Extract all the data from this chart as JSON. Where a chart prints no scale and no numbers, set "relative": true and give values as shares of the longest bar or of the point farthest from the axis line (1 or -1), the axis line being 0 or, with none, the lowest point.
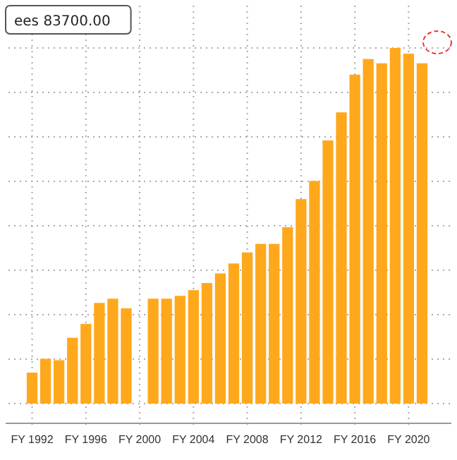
{
  "chart_data": {
    "type": "bar",
    "relative": true,
    "color": "#ffa81c",
    "grid": true,
    "categories": [
      "FY 1992",
      null,
      null,
      null,
      "FY 1996",
      null,
      null,
      null,
      "FY 2000",
      null,
      null,
      null,
      "FY 2004",
      null,
      null,
      null,
      "FY 2008",
      null,
      null,
      null,
      "FY 2012",
      null,
      null,
      null,
      "FY 2016",
      null,
      null,
      null,
      "FY 2020",
      null
    ],
    "values": [
      0.087,
      0.126,
      0.122,
      0.185,
      0.224,
      0.283,
      0.295,
      0.268,
      null,
      0.295,
      0.295,
      0.303,
      0.319,
      0.339,
      0.366,
      0.394,
      0.425,
      0.449,
      0.449,
      0.496,
      0.575,
      0.626,
      0.74,
      0.819,
      0.925,
      0.969,
      0.957,
      1,
      0.984,
      0.957
    ],
    "annotations": [
      "ees 83700.00"
    ]
  }
}
